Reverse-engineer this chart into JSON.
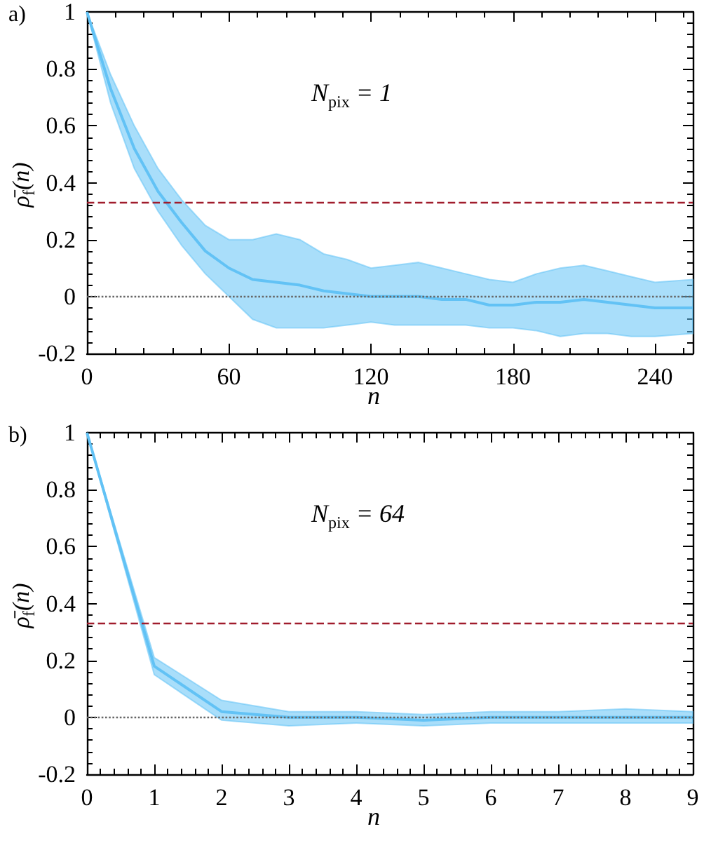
{
  "chart_data": [
    {
      "type": "line",
      "title": "a)",
      "xlabel": "n",
      "ylabel": "ρ̄$_{f}$(n)",
      "annotations": [
        "N$_{pix}$ = 1"
      ],
      "marker": "none",
      "grid": false,
      "xlim": [
        0,
        256
      ],
      "xticks": [
        0,
        60,
        120,
        180,
        240
      ],
      "ylim": [
        -0.2,
        1
      ],
      "yticks": [
        -0.2,
        0,
        0.2,
        0.4,
        0.6,
        0.8,
        1
      ],
      "x": [
        0,
        10,
        20,
        30,
        40,
        50,
        60,
        70,
        80,
        90,
        100,
        110,
        120,
        130,
        140,
        150,
        160,
        170,
        180,
        190,
        200,
        210,
        220,
        230,
        240,
        256
      ],
      "series": [
        {
          "color": "#62c2f5",
          "values": [
            1,
            0.73,
            0.52,
            0.37,
            0.26,
            0.16,
            0.1,
            0.06,
            0.05,
            0.04,
            0.02,
            0.01,
            0.0,
            0.0,
            0.0,
            -0.01,
            -0.01,
            -0.03,
            -0.03,
            -0.02,
            -0.02,
            -0.01,
            -0.02,
            -0.03,
            -0.04,
            -0.04
          ],
          "lower": [
            1,
            0.68,
            0.45,
            0.3,
            0.18,
            0.08,
            0.0,
            -0.08,
            -0.11,
            -0.11,
            -0.11,
            -0.1,
            -0.09,
            -0.1,
            -0.1,
            -0.1,
            -0.1,
            -0.11,
            -0.11,
            -0.12,
            -0.14,
            -0.13,
            -0.13,
            -0.14,
            -0.14,
            -0.13
          ],
          "upper": [
            1,
            0.78,
            0.6,
            0.45,
            0.34,
            0.25,
            0.2,
            0.2,
            0.22,
            0.2,
            0.15,
            0.13,
            0.1,
            0.11,
            0.12,
            0.1,
            0.08,
            0.06,
            0.05,
            0.08,
            0.1,
            0.11,
            0.09,
            0.07,
            0.05,
            0.06
          ]
        }
      ],
      "ref_lines": [
        {
          "axis": "y",
          "value": 0.333,
          "color": "#a01c2c",
          "line_style": "dashed"
        },
        {
          "axis": "y",
          "value": 0,
          "color": "#666666",
          "line_style": "dotted"
        }
      ]
    },
    {
      "type": "line",
      "title": "b)",
      "xlabel": "n",
      "ylabel": "ρ̄$_{f}$(n)",
      "annotations": [
        "N$_{pix}$ = 64"
      ],
      "marker": "none",
      "grid": false,
      "xlim": [
        0,
        9
      ],
      "xticks": [
        0,
        1,
        2,
        3,
        4,
        5,
        6,
        7,
        8,
        9
      ],
      "ylim": [
        -0.2,
        1
      ],
      "yticks": [
        -0.2,
        0,
        0.2,
        0.4,
        0.6,
        0.8,
        1
      ],
      "x": [
        0,
        1,
        2,
        3,
        4,
        5,
        6,
        7,
        8,
        9
      ],
      "series": [
        {
          "color": "#62c2f5",
          "values": [
            1,
            0.18,
            0.02,
            0,
            0,
            -0.01,
            0,
            0,
            0,
            0
          ],
          "lower": [
            1,
            0.15,
            -0.01,
            -0.03,
            -0.02,
            -0.03,
            -0.02,
            -0.02,
            -0.02,
            -0.02
          ],
          "upper": [
            1,
            0.21,
            0.06,
            0.02,
            0.02,
            0.01,
            0.02,
            0.02,
            0.03,
            0.02
          ]
        }
      ],
      "ref_lines": [
        {
          "axis": "y",
          "value": 0.333,
          "color": "#a01c2c",
          "line_style": "dashed"
        },
        {
          "axis": "y",
          "value": 0,
          "color": "#666666",
          "line_style": "dotted"
        }
      ]
    }
  ]
}
